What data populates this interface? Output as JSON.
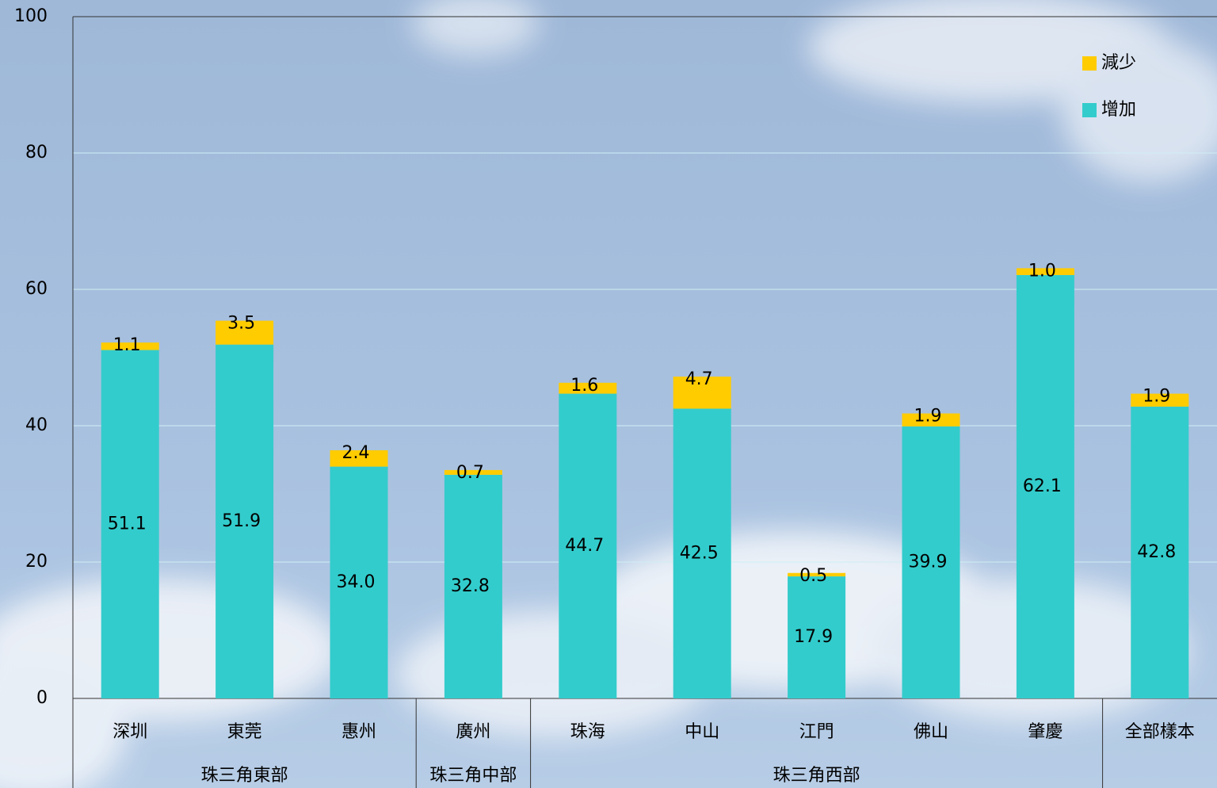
{
  "chart_data": {
    "type": "stacked_bar",
    "categories": [
      "深圳",
      "東莞",
      "惠州",
      "廣州",
      "珠海",
      "中山",
      "江門",
      "佛山",
      "肇慶",
      "全部樣本"
    ],
    "groups": [
      {
        "label": "珠三角東部",
        "categories": [
          "深圳",
          "東莞",
          "惠州"
        ]
      },
      {
        "label": "珠三角中部",
        "categories": [
          "廣州"
        ]
      },
      {
        "label": "珠三角西部",
        "categories": [
          "珠海",
          "中山",
          "江門",
          "佛山",
          "肇慶"
        ]
      }
    ],
    "series": [
      {
        "name": "增加",
        "color": "#33cccc",
        "values": [
          51.1,
          51.9,
          34.0,
          32.8,
          44.7,
          42.5,
          17.9,
          39.9,
          62.1,
          42.8
        ],
        "value_labels": [
          "51.1",
          "51.9",
          "34.0",
          "32.8",
          "44.7",
          "42.5",
          "17.9",
          "39.9",
          "62.1",
          "42.8"
        ]
      },
      {
        "name": "減少",
        "color": "#ffcc00",
        "values": [
          1.1,
          3.5,
          2.4,
          0.7,
          1.6,
          4.7,
          0.5,
          1.9,
          1.0,
          1.9
        ],
        "value_labels": [
          "1.1",
          "3.5",
          "2.4",
          "0.7",
          "1.6",
          "4.7",
          "0.5",
          "1.9",
          "1.0",
          "1.9"
        ]
      }
    ],
    "ylim": [
      0,
      100
    ],
    "yticks": [
      0,
      20,
      40,
      60,
      80,
      100
    ],
    "grid": true,
    "legend": "top-right",
    "legend_order": "reversed"
  }
}
